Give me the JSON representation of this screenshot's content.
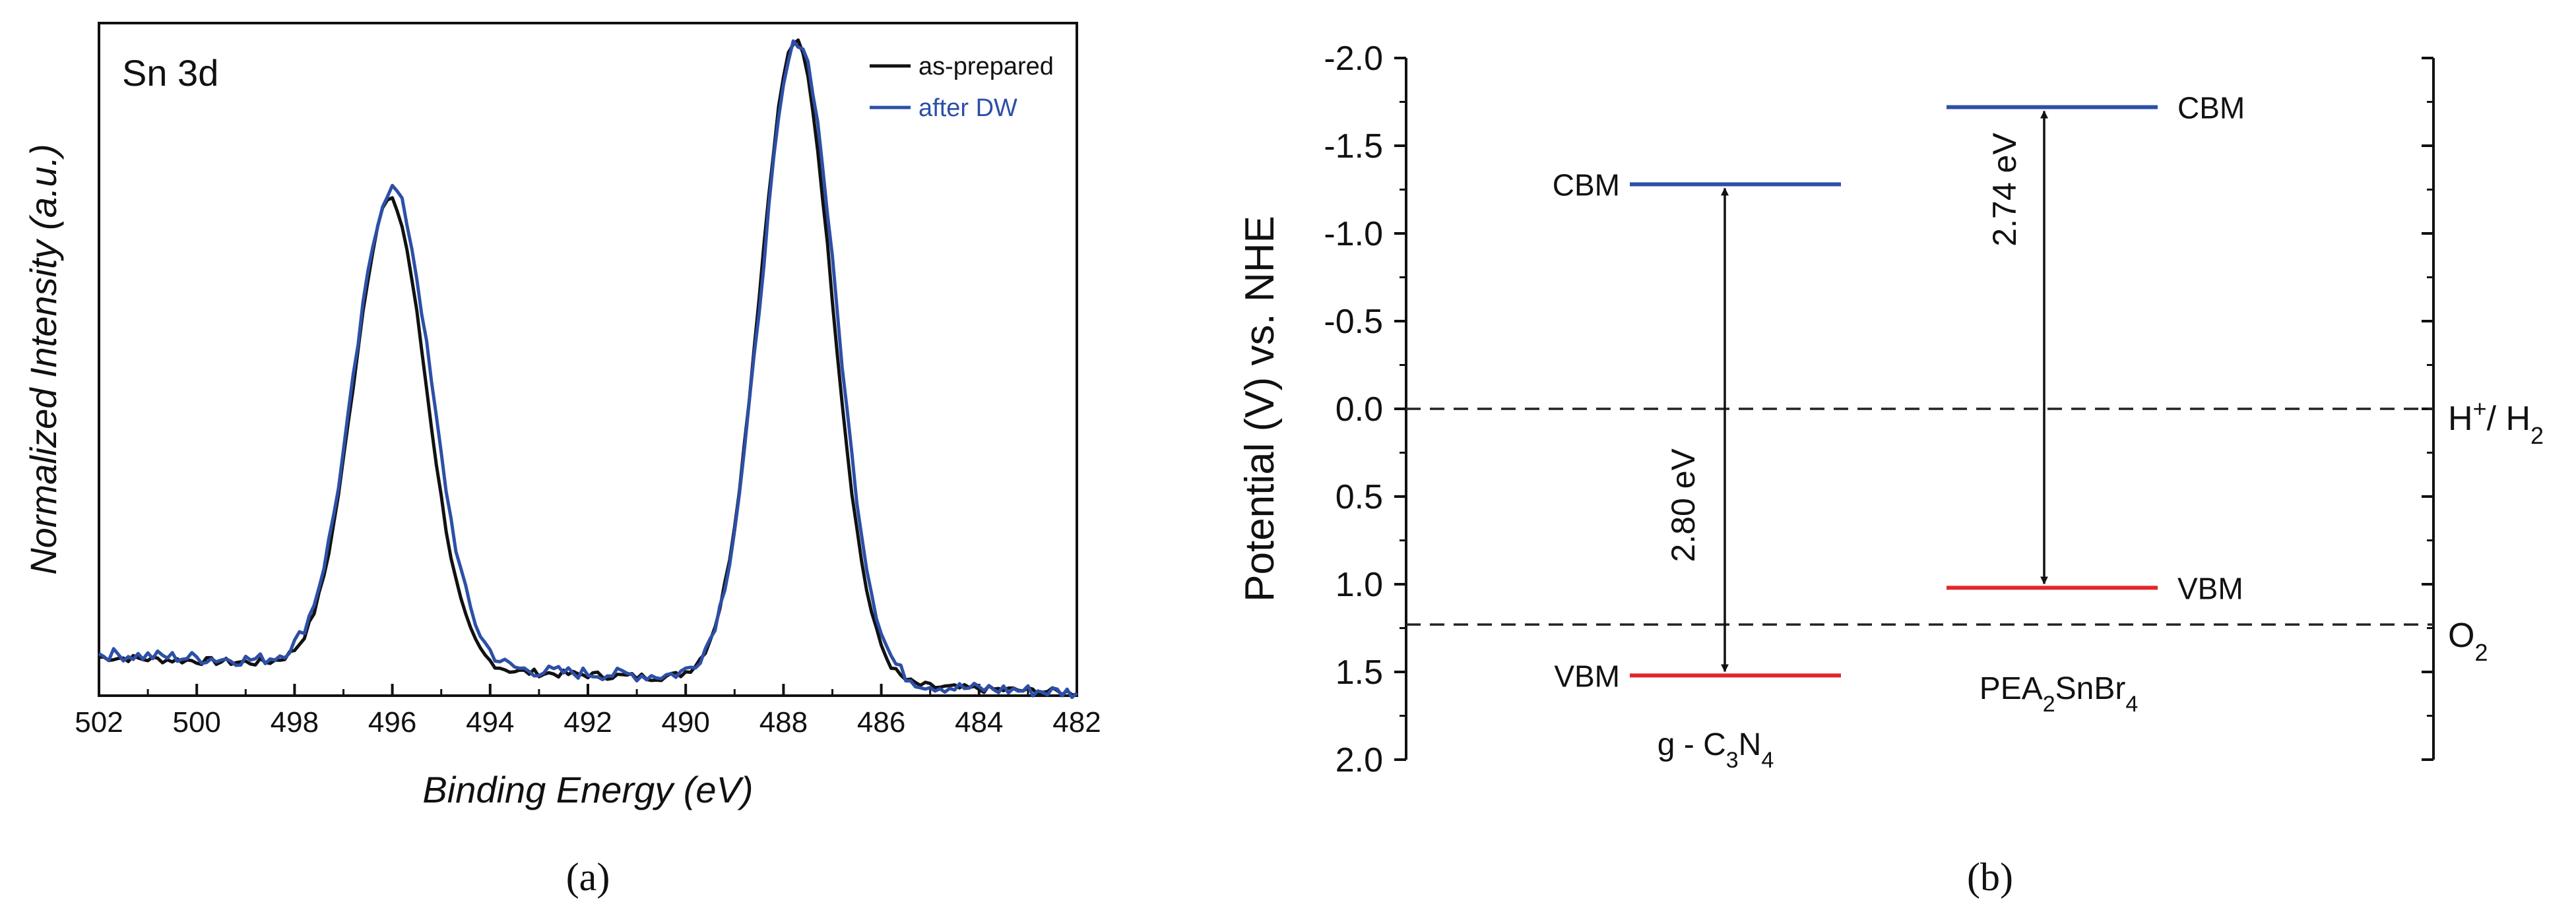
{
  "colors": {
    "black": "#111111",
    "blue": "#2d4fa8",
    "red": "#e0262b",
    "dashed": "#222222"
  },
  "chart_data": [
    {
      "type": "line",
      "panel_label": "(a)",
      "inset_title": "Sn 3d",
      "xlabel": "Binding Energy (eV)",
      "ylabel": "Normalized Intensity (a.u.)",
      "xlim": [
        502,
        482
      ],
      "x_ticks": [
        502,
        500,
        498,
        496,
        494,
        492,
        490,
        488,
        486,
        484,
        482
      ],
      "ylim": [
        0,
        1.05
      ],
      "legend": "top-right",
      "series": [
        {
          "name": "as-prepared",
          "color": "#111111",
          "baseline_left": 0.06,
          "baseline_right": 0.005,
          "peaks": [
            {
              "center": 496.05,
              "height": 0.73,
              "fwhm": 1.75
            },
            {
              "center": 487.75,
              "height": 1.0,
              "fwhm": 1.75
            }
          ],
          "noise": 0.006
        },
        {
          "name": "after DW",
          "color": "#2d4fa8",
          "baseline_left": 0.065,
          "baseline_right": 0.005,
          "peaks": [
            {
              "center": 496.0,
              "height": 0.745,
              "fwhm": 1.85
            },
            {
              "center": 487.7,
              "height": 1.0,
              "fwhm": 1.8
            }
          ],
          "noise": 0.01
        }
      ]
    },
    {
      "type": "band-diagram",
      "panel_label": "(b)",
      "ylabel": "Potential (V) vs. NHE",
      "ylim": [
        -2.0,
        2.0
      ],
      "y_ticks": [
        "-2.0",
        "-1.5",
        "-1.0",
        "-0.5",
        "0.0",
        "0.5",
        "1.0",
        "1.5",
        "2.0"
      ],
      "y_tick_values": [
        -2.0,
        -1.5,
        -1.0,
        -0.5,
        0.0,
        0.5,
        1.0,
        1.5,
        2.0
      ],
      "reference_lines": [
        {
          "label": "H+/ H2",
          "value": 0.0
        },
        {
          "label": "O2",
          "value": 1.23
        }
      ],
      "materials": [
        {
          "name": "g - C3N4",
          "cbm": -1.28,
          "vbm": 1.52,
          "gap_label": "2.80 eV",
          "cbm_label": "CBM",
          "vbm_label": "VBM"
        },
        {
          "name": "PEA2SnBr4",
          "cbm": -1.72,
          "vbm": 1.02,
          "gap_label": "2.74 eV",
          "cbm_label": "CBM",
          "vbm_label": "VBM"
        }
      ]
    }
  ]
}
